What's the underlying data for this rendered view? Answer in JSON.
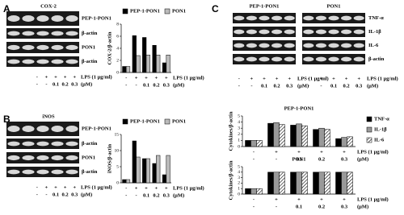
{
  "panels": [
    {
      "letter": "A",
      "blot_title": "COX-2",
      "blot_rows": [
        "PEP-1-PON1",
        "β-actin",
        "PON1",
        "β-actin"
      ]
    },
    {
      "letter": "B",
      "blot_title": "iNOS",
      "blot_rows": [
        "PEP-1-PON1",
        "β-actin",
        "PON1",
        "β-actin"
      ]
    },
    {
      "letter": "C",
      "blot_groups": [
        "PEP-1-PON1",
        "PON1"
      ],
      "blot_rows": [
        "TNF-α",
        "IL-1β",
        "IL-6",
        "β-actin"
      ]
    }
  ],
  "conditions": {
    "lps": [
      "-",
      "+",
      "+",
      "+",
      "+"
    ],
    "dose": [
      "-",
      "-",
      "0.1",
      "0.2",
      "0.3"
    ],
    "lps_label": "LPS (1 μg/ml)",
    "dose_label": "(μM)"
  },
  "chart_data": [
    {
      "type": "bar",
      "y_label": "COX-2/β-actin",
      "categories": [
        "-",
        "-",
        "0.1",
        "0.2",
        "0.3"
      ],
      "legend": "top",
      "series": [
        {
          "name": "PEP-1-PON1",
          "color": "#000000",
          "values": [
            1.0,
            6.1,
            5.8,
            4.5,
            1.6
          ]
        },
        {
          "name": "PON1",
          "color": "#bbbbbb",
          "values": [
            1.0,
            2.8,
            2.9,
            2.9,
            2.9
          ]
        }
      ],
      "ylim": [
        0,
        8
      ],
      "yticks": [
        0,
        2,
        4,
        6,
        8
      ]
    },
    {
      "type": "bar",
      "y_label": "iNOS/β-actin",
      "categories": [
        "-",
        "-",
        "0.1",
        "0.2",
        "0.3"
      ],
      "legend": "top",
      "series": [
        {
          "name": "PEP-1-PON1",
          "color": "#000000",
          "values": [
            1.0,
            13.0,
            7.5,
            6.0,
            2.5
          ]
        },
        {
          "name": "PON1",
          "color": "#bbbbbb",
          "values": [
            1.0,
            8.0,
            7.5,
            8.5,
            8.5
          ]
        }
      ],
      "ylim": [
        0,
        15
      ],
      "yticks": [
        0,
        5,
        10,
        15
      ]
    },
    {
      "type": "bar",
      "title": "PEP-1-PON1",
      "y_label": "Cytokines/β-actin",
      "categories": [
        "-",
        "-",
        "0.1",
        "0.2",
        "0.3"
      ],
      "legend": "right",
      "series": [
        {
          "name": "TNF-α",
          "color": "#000000",
          "values": [
            1.0,
            3.8,
            3.5,
            2.8,
            1.3
          ]
        },
        {
          "name": "IL-1β",
          "color": "#999999",
          "values": [
            1.0,
            3.9,
            3.7,
            3.0,
            1.5
          ]
        },
        {
          "name": "IL-6",
          "color": "#ffffff",
          "hatch": true,
          "values": [
            1.0,
            3.6,
            3.4,
            2.8,
            1.6
          ]
        }
      ],
      "ylim": [
        0,
        5
      ],
      "yticks": [
        0,
        1,
        2,
        3,
        4,
        5
      ]
    },
    {
      "type": "bar",
      "title": "PON1",
      "y_label": "Cytokines/β-actin",
      "categories": [
        "-",
        "-",
        "0.1",
        "0.2",
        "0.3"
      ],
      "legend": "none",
      "series": [
        {
          "name": "TNF-α",
          "color": "#000000",
          "values": [
            1.0,
            4.0,
            4.0,
            4.0,
            4.0
          ]
        },
        {
          "name": "IL-1β",
          "color": "#999999",
          "values": [
            1.0,
            4.0,
            4.0,
            4.0,
            4.0
          ]
        },
        {
          "name": "IL-6",
          "color": "#ffffff",
          "hatch": true,
          "values": [
            1.0,
            4.0,
            4.0,
            4.0,
            4.0
          ]
        }
      ],
      "ylim": [
        0,
        5
      ],
      "yticks": [
        0,
        1,
        2,
        3,
        4,
        5
      ]
    }
  ]
}
